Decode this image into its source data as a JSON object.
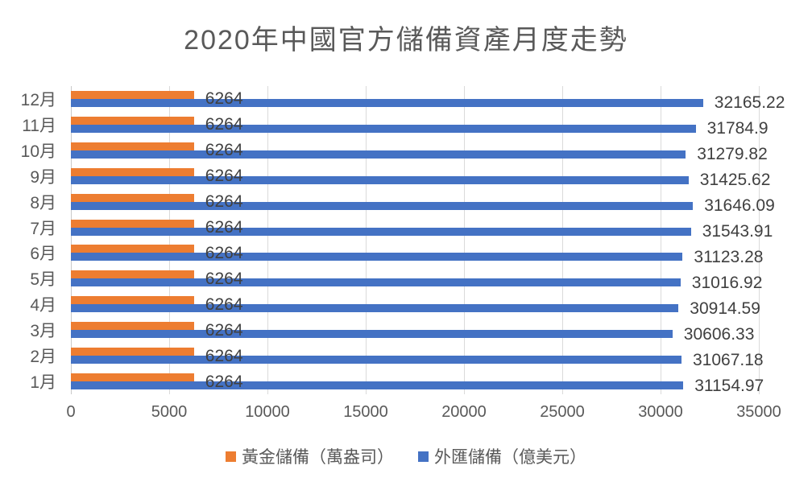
{
  "chart_data": {
    "type": "bar",
    "orientation": "horizontal",
    "title": "2020年中國官方儲備資產月度走勢",
    "categories": [
      "12月",
      "11月",
      "10月",
      "9月",
      "8月",
      "7月",
      "6月",
      "5月",
      "4月",
      "3月",
      "2月",
      "1月"
    ],
    "series": [
      {
        "name": "黃金儲備（萬盎司）",
        "color": "#ED7D31",
        "values": [
          6264,
          6264,
          6264,
          6264,
          6264,
          6264,
          6264,
          6264,
          6264,
          6264,
          6264,
          6264
        ],
        "labels": [
          "6264",
          "6264",
          "6264",
          "6264",
          "6264",
          "6264",
          "6264",
          "6264",
          "6264",
          "6264",
          "6264",
          "6264"
        ]
      },
      {
        "name": "外匯儲備（億美元）",
        "color": "#4472C4",
        "values": [
          32165.22,
          31784.9,
          31279.82,
          31425.62,
          31646.09,
          31543.91,
          31123.28,
          31016.92,
          30914.59,
          30606.33,
          31067.18,
          31154.97
        ],
        "labels": [
          "32165.22",
          "31784.9",
          "31279.82",
          "31425.62",
          "31646.09",
          "31543.91",
          "31123.28",
          "31016.92",
          "30914.59",
          "30606.33",
          "31067.18",
          "31154.97"
        ]
      }
    ],
    "xlabel": "",
    "ylabel": "",
    "x_ticks": [
      0,
      5000,
      10000,
      15000,
      20000,
      25000,
      30000,
      35000
    ],
    "xlim": [
      0,
      35000
    ],
    "grid": true,
    "legend_position": "bottom",
    "data_labels": true
  },
  "colors": {
    "gold_series": "#ED7D31",
    "forex_series": "#4472C4",
    "title_text": "#595959",
    "axis_text": "#595959",
    "data_label_text": "#404040",
    "gridline": "#DADADA",
    "axis_line": "#C9C9C9",
    "background": "#FFFFFF"
  }
}
